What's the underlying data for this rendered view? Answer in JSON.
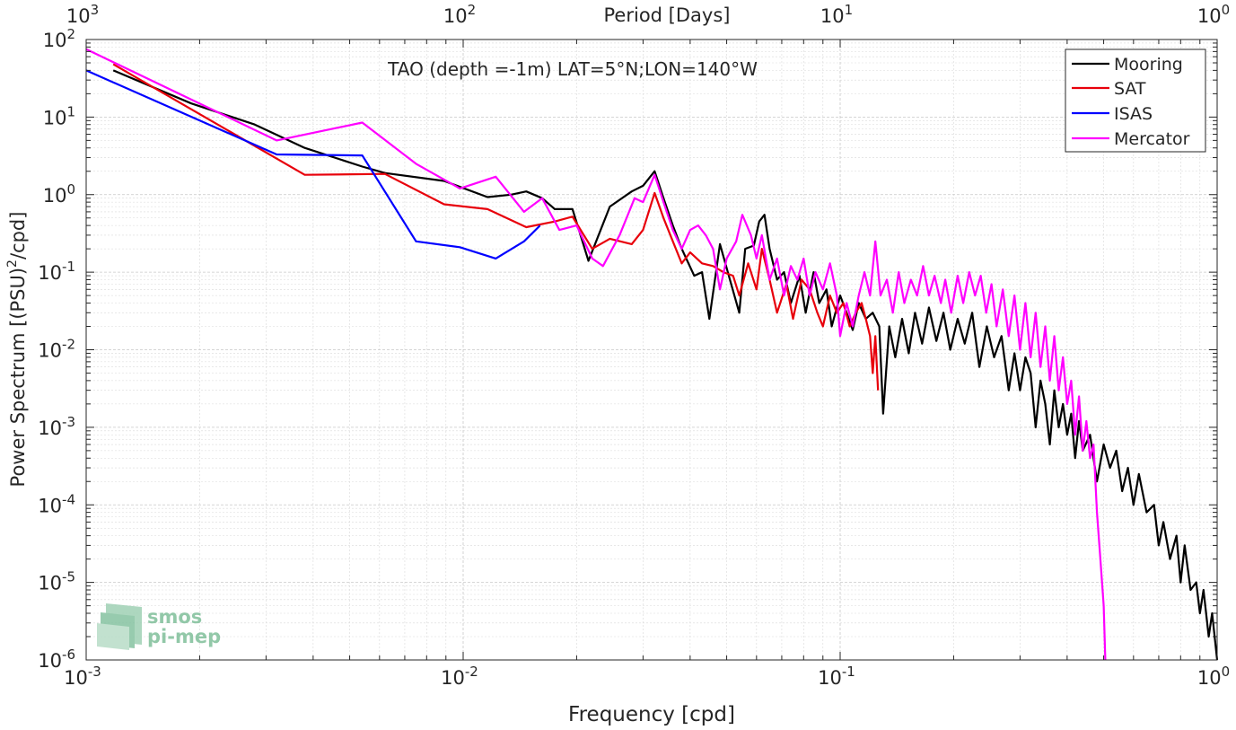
{
  "chart_data": {
    "type": "line",
    "title": "TAO (depth =-1m) LAT=5°N;LON=140°W",
    "xlabel": "Frequency [cpd]",
    "ylabel": "Power Spectrum [(PSU)",
    "ylabel_sup": "2",
    "ylabel_suffix": "/cpd]",
    "top_xlabel": "Period [Days]",
    "xscale": "log",
    "yscale": "log",
    "xlim": [
      0.001,
      1
    ],
    "ylim": [
      1e-06,
      100
    ],
    "grid": true,
    "legend_position": "top-right",
    "x_ticks": [
      {
        "value": 0.001,
        "base": "10",
        "exp": "-3"
      },
      {
        "value": 0.01,
        "base": "10",
        "exp": "-2"
      },
      {
        "value": 0.1,
        "base": "10",
        "exp": "-1"
      },
      {
        "value": 1,
        "base": "10",
        "exp": "0"
      }
    ],
    "top_ticks": [
      {
        "value": 0.001,
        "base": "10",
        "exp": "3"
      },
      {
        "value": 0.01,
        "base": "10",
        "exp": "2"
      },
      {
        "value": 0.1,
        "base": "10",
        "exp": "1"
      },
      {
        "value": 1,
        "base": "10",
        "exp": "0"
      }
    ],
    "y_ticks": [
      {
        "value": 100,
        "base": "10",
        "exp": "2"
      },
      {
        "value": 10,
        "base": "10",
        "exp": "1"
      },
      {
        "value": 1,
        "base": "10",
        "exp": "0"
      },
      {
        "value": 0.1,
        "base": "10",
        "exp": "-1"
      },
      {
        "value": 0.01,
        "base": "10",
        "exp": "-2"
      },
      {
        "value": 0.001,
        "base": "10",
        "exp": "-3"
      },
      {
        "value": 0.0001,
        "base": "10",
        "exp": "-4"
      },
      {
        "value": 1e-05,
        "base": "10",
        "exp": "-5"
      },
      {
        "value": 1e-06,
        "base": "10",
        "exp": "-6"
      }
    ],
    "series": [
      {
        "name": "Mooring",
        "color": "#000000",
        "points": [
          [
            0.00118,
            40
          ],
          [
            0.0019,
            15
          ],
          [
            0.0028,
            8
          ],
          [
            0.0038,
            4
          ],
          [
            0.0054,
            2.3
          ],
          [
            0.0062,
            1.9
          ],
          [
            0.0089,
            1.5
          ],
          [
            0.0116,
            0.93
          ],
          [
            0.0134,
            1.0
          ],
          [
            0.0147,
            1.1
          ],
          [
            0.0162,
            0.9
          ],
          [
            0.0175,
            0.65
          ],
          [
            0.0195,
            0.65
          ],
          [
            0.0215,
            0.14
          ],
          [
            0.0245,
            0.7
          ],
          [
            0.028,
            1.1
          ],
          [
            0.03,
            1.3
          ],
          [
            0.0322,
            2.0
          ],
          [
            0.034,
            0.9
          ],
          [
            0.036,
            0.4
          ],
          [
            0.038,
            0.2
          ],
          [
            0.041,
            0.09
          ],
          [
            0.043,
            0.1
          ],
          [
            0.045,
            0.025
          ],
          [
            0.048,
            0.23
          ],
          [
            0.051,
            0.08
          ],
          [
            0.054,
            0.03
          ],
          [
            0.056,
            0.2
          ],
          [
            0.059,
            0.22
          ],
          [
            0.061,
            0.45
          ],
          [
            0.063,
            0.55
          ],
          [
            0.065,
            0.2
          ],
          [
            0.068,
            0.08
          ],
          [
            0.071,
            0.1
          ],
          [
            0.074,
            0.04
          ],
          [
            0.078,
            0.09
          ],
          [
            0.081,
            0.03
          ],
          [
            0.085,
            0.1
          ],
          [
            0.088,
            0.04
          ],
          [
            0.092,
            0.06
          ],
          [
            0.095,
            0.02
          ],
          [
            0.1,
            0.05
          ],
          [
            0.104,
            0.03
          ],
          [
            0.108,
            0.018
          ],
          [
            0.112,
            0.04
          ],
          [
            0.117,
            0.025
          ],
          [
            0.122,
            0.03
          ],
          [
            0.127,
            0.02
          ],
          [
            0.13,
            0.0015
          ],
          [
            0.135,
            0.02
          ],
          [
            0.14,
            0.008
          ],
          [
            0.146,
            0.025
          ],
          [
            0.152,
            0.009
          ],
          [
            0.158,
            0.03
          ],
          [
            0.165,
            0.012
          ],
          [
            0.172,
            0.035
          ],
          [
            0.18,
            0.013
          ],
          [
            0.188,
            0.03
          ],
          [
            0.196,
            0.01
          ],
          [
            0.205,
            0.025
          ],
          [
            0.214,
            0.012
          ],
          [
            0.224,
            0.03
          ],
          [
            0.234,
            0.006
          ],
          [
            0.245,
            0.02
          ],
          [
            0.256,
            0.008
          ],
          [
            0.268,
            0.015
          ],
          [
            0.28,
            0.003
          ],
          [
            0.29,
            0.009
          ],
          [
            0.3,
            0.003
          ],
          [
            0.31,
            0.008
          ],
          [
            0.32,
            0.005
          ],
          [
            0.33,
            0.001
          ],
          [
            0.34,
            0.004
          ],
          [
            0.35,
            0.002
          ],
          [
            0.36,
            0.0006
          ],
          [
            0.37,
            0.003
          ],
          [
            0.38,
            0.001
          ],
          [
            0.39,
            0.002
          ],
          [
            0.4,
            0.0008
          ],
          [
            0.41,
            0.0015
          ],
          [
            0.42,
            0.0004
          ],
          [
            0.43,
            0.0012
          ],
          [
            0.44,
            0.0005
          ],
          [
            0.46,
            0.0008
          ],
          [
            0.48,
            0.0002
          ],
          [
            0.5,
            0.0006
          ],
          [
            0.52,
            0.0003
          ],
          [
            0.54,
            0.0005
          ],
          [
            0.56,
            0.00015
          ],
          [
            0.58,
            0.0003
          ],
          [
            0.6,
            0.0001
          ],
          [
            0.62,
            0.00025
          ],
          [
            0.65,
            8e-05
          ],
          [
            0.68,
            0.0001
          ],
          [
            0.7,
            3e-05
          ],
          [
            0.72,
            6e-05
          ],
          [
            0.75,
            2e-05
          ],
          [
            0.78,
            4e-05
          ],
          [
            0.8,
            1e-05
          ],
          [
            0.82,
            3e-05
          ],
          [
            0.85,
            8e-06
          ],
          [
            0.88,
            1e-05
          ],
          [
            0.9,
            4e-06
          ],
          [
            0.92,
            8e-06
          ],
          [
            0.95,
            2e-06
          ],
          [
            0.97,
            4e-06
          ],
          [
            1.0,
            1e-06
          ]
        ]
      },
      {
        "name": "SAT",
        "color": "#e8000b",
        "points": [
          [
            0.00118,
            48
          ],
          [
            0.0038,
            1.8
          ],
          [
            0.0062,
            1.85
          ],
          [
            0.0089,
            0.75
          ],
          [
            0.0116,
            0.65
          ],
          [
            0.0147,
            0.38
          ],
          [
            0.0175,
            0.45
          ],
          [
            0.0195,
            0.52
          ],
          [
            0.022,
            0.2
          ],
          [
            0.0245,
            0.27
          ],
          [
            0.028,
            0.23
          ],
          [
            0.03,
            0.35
          ],
          [
            0.0322,
            1.05
          ],
          [
            0.034,
            0.5
          ],
          [
            0.036,
            0.25
          ],
          [
            0.038,
            0.13
          ],
          [
            0.04,
            0.18
          ],
          [
            0.043,
            0.13
          ],
          [
            0.046,
            0.12
          ],
          [
            0.049,
            0.1
          ],
          [
            0.052,
            0.09
          ],
          [
            0.054,
            0.05
          ],
          [
            0.057,
            0.13
          ],
          [
            0.06,
            0.06
          ],
          [
            0.062,
            0.2
          ],
          [
            0.065,
            0.08
          ],
          [
            0.068,
            0.03
          ],
          [
            0.072,
            0.07
          ],
          [
            0.075,
            0.025
          ],
          [
            0.079,
            0.08
          ],
          [
            0.083,
            0.06
          ],
          [
            0.087,
            0.03
          ],
          [
            0.09,
            0.02
          ],
          [
            0.094,
            0.05
          ],
          [
            0.098,
            0.03
          ],
          [
            0.102,
            0.04
          ],
          [
            0.106,
            0.02
          ],
          [
            0.11,
            0.03
          ],
          [
            0.114,
            0.04
          ],
          [
            0.117,
            0.025
          ],
          [
            0.12,
            0.015
          ],
          [
            0.122,
            0.005
          ],
          [
            0.124,
            0.015
          ],
          [
            0.126,
            0.003
          ]
        ]
      },
      {
        "name": "ISAS",
        "color": "#0000ff",
        "points": [
          [
            0.001,
            40
          ],
          [
            0.0032,
            3.3
          ],
          [
            0.0054,
            3.2
          ],
          [
            0.0075,
            0.25
          ],
          [
            0.0098,
            0.21
          ],
          [
            0.0122,
            0.15
          ],
          [
            0.0145,
            0.25
          ],
          [
            0.016,
            0.4
          ]
        ]
      },
      {
        "name": "Mercator",
        "color": "#ff00ff",
        "points": [
          [
            0.001,
            75
          ],
          [
            0.0032,
            5
          ],
          [
            0.0054,
            8.5
          ],
          [
            0.0075,
            2.5
          ],
          [
            0.0098,
            1.2
          ],
          [
            0.0122,
            1.7
          ],
          [
            0.0145,
            0.6
          ],
          [
            0.0162,
            0.9
          ],
          [
            0.018,
            0.35
          ],
          [
            0.02,
            0.4
          ],
          [
            0.022,
            0.15
          ],
          [
            0.0235,
            0.12
          ],
          [
            0.026,
            0.3
          ],
          [
            0.0285,
            0.9
          ],
          [
            0.03,
            0.8
          ],
          [
            0.0322,
            1.8
          ],
          [
            0.034,
            0.8
          ],
          [
            0.036,
            0.35
          ],
          [
            0.038,
            0.2
          ],
          [
            0.04,
            0.35
          ],
          [
            0.042,
            0.4
          ],
          [
            0.044,
            0.3
          ],
          [
            0.046,
            0.2
          ],
          [
            0.048,
            0.06
          ],
          [
            0.05,
            0.15
          ],
          [
            0.053,
            0.25
          ],
          [
            0.055,
            0.55
          ],
          [
            0.058,
            0.3
          ],
          [
            0.06,
            0.15
          ],
          [
            0.062,
            0.3
          ],
          [
            0.065,
            0.08
          ],
          [
            0.068,
            0.15
          ],
          [
            0.071,
            0.05
          ],
          [
            0.074,
            0.12
          ],
          [
            0.077,
            0.08
          ],
          [
            0.08,
            0.15
          ],
          [
            0.083,
            0.05
          ],
          [
            0.086,
            0.1
          ],
          [
            0.09,
            0.06
          ],
          [
            0.094,
            0.13
          ],
          [
            0.098,
            0.05
          ],
          [
            0.1,
            0.015
          ],
          [
            0.104,
            0.04
          ],
          [
            0.108,
            0.02
          ],
          [
            0.112,
            0.05
          ],
          [
            0.116,
            0.1
          ],
          [
            0.12,
            0.05
          ],
          [
            0.124,
            0.25
          ],
          [
            0.128,
            0.05
          ],
          [
            0.133,
            0.08
          ],
          [
            0.138,
            0.03
          ],
          [
            0.143,
            0.1
          ],
          [
            0.148,
            0.04
          ],
          [
            0.154,
            0.08
          ],
          [
            0.16,
            0.05
          ],
          [
            0.166,
            0.12
          ],
          [
            0.172,
            0.05
          ],
          [
            0.178,
            0.09
          ],
          [
            0.185,
            0.04
          ],
          [
            0.19,
            0.08
          ],
          [
            0.197,
            0.03
          ],
          [
            0.205,
            0.09
          ],
          [
            0.212,
            0.04
          ],
          [
            0.22,
            0.1
          ],
          [
            0.228,
            0.05
          ],
          [
            0.236,
            0.09
          ],
          [
            0.244,
            0.03
          ],
          [
            0.252,
            0.07
          ],
          [
            0.26,
            0.02
          ],
          [
            0.27,
            0.06
          ],
          [
            0.28,
            0.015
          ],
          [
            0.29,
            0.05
          ],
          [
            0.3,
            0.01
          ],
          [
            0.31,
            0.04
          ],
          [
            0.32,
            0.008
          ],
          [
            0.33,
            0.03
          ],
          [
            0.34,
            0.006
          ],
          [
            0.35,
            0.02
          ],
          [
            0.36,
            0.004
          ],
          [
            0.37,
            0.015
          ],
          [
            0.38,
            0.003
          ],
          [
            0.39,
            0.008
          ],
          [
            0.4,
            0.002
          ],
          [
            0.41,
            0.004
          ],
          [
            0.42,
            0.0008
          ],
          [
            0.43,
            0.0025
          ],
          [
            0.44,
            0.0005
          ],
          [
            0.45,
            0.0012
          ],
          [
            0.46,
            0.0004
          ],
          [
            0.47,
            0.0006
          ],
          [
            0.48,
            8e-05
          ],
          [
            0.49,
            2e-05
          ],
          [
            0.5,
            5e-06
          ],
          [
            0.505,
            1e-06
          ]
        ]
      }
    ]
  },
  "watermark": {
    "line1": "smos",
    "line2": "pi-mep",
    "color": "#7fbf9a"
  }
}
